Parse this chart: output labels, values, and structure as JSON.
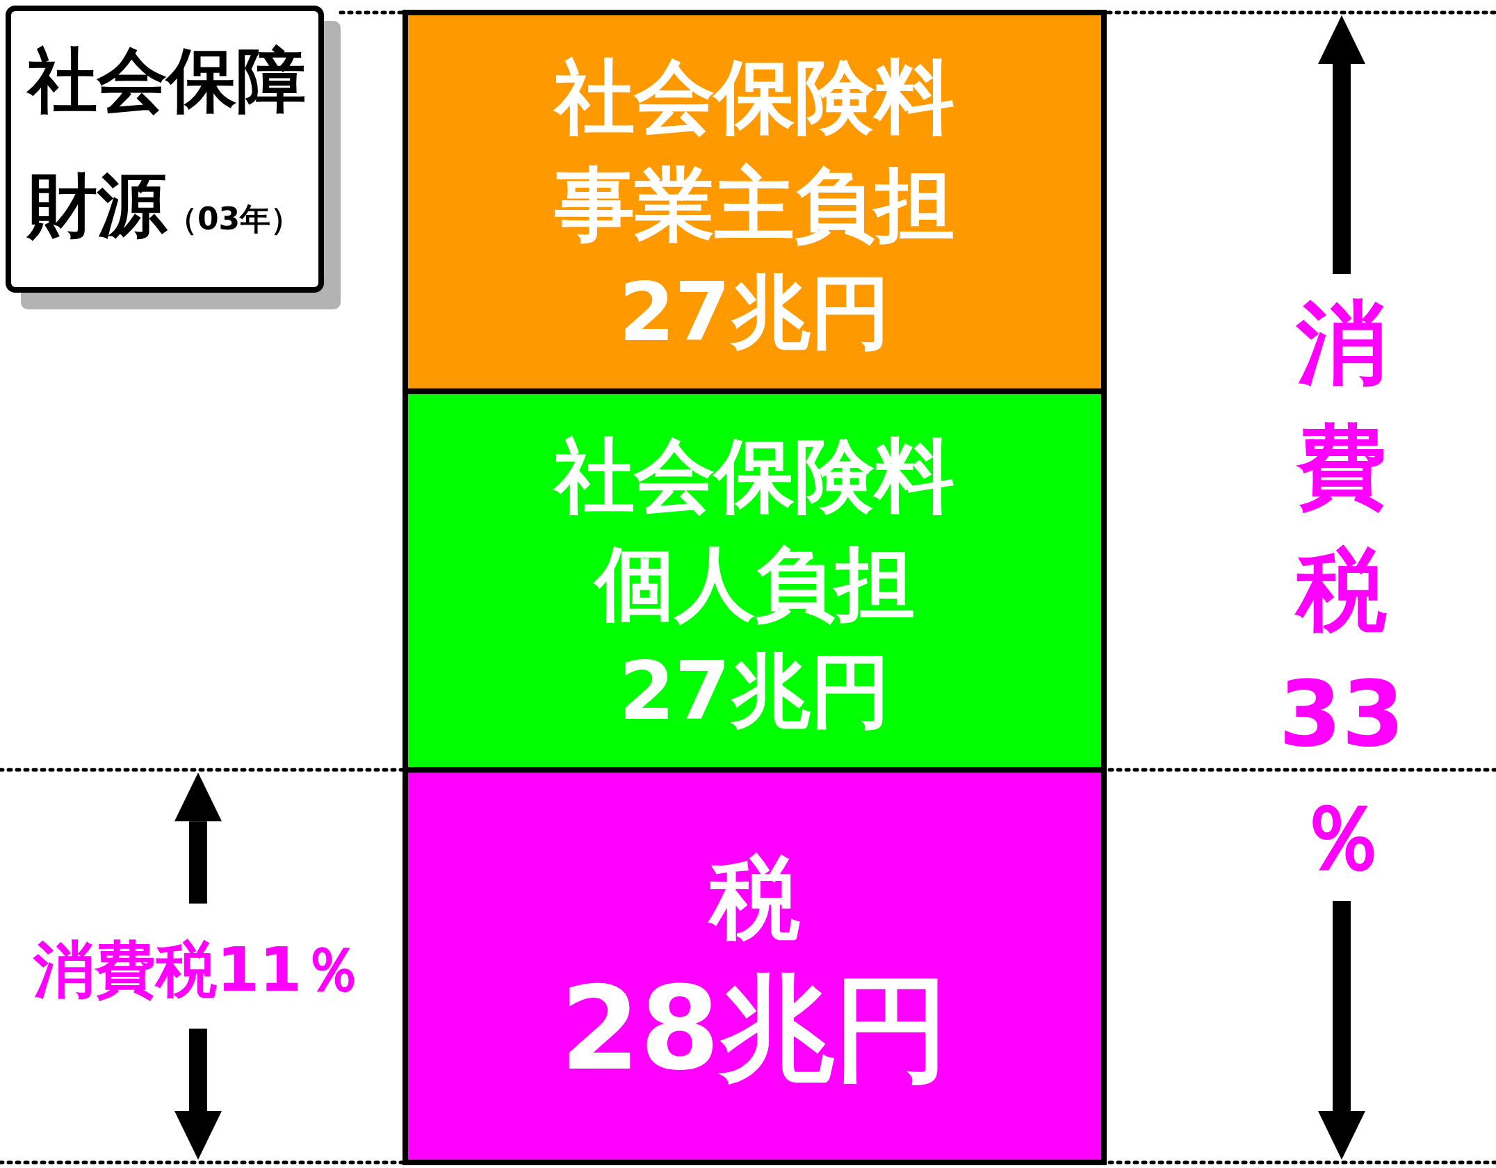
{
  "chart_data": {
    "type": "bar",
    "title": "社会保障財源",
    "subtitle": "（03年）",
    "categories": [
      null
    ],
    "stacked": true,
    "series": [
      {
        "name": "税",
        "color": "#ff00ff",
        "values": [
          28
        ],
        "value_labels": [
          "28兆円"
        ]
      },
      {
        "name": "社会保険料個人負担",
        "color": "#00ff00",
        "values": [
          27
        ],
        "value_labels": [
          "27兆円"
        ]
      },
      {
        "name": "社会保険料事業主負担",
        "color": "#ff9900",
        "values": [
          27
        ],
        "value_labels": [
          "27兆円"
        ]
      }
    ],
    "ref_lines": [
      {
        "axis": "y",
        "value": 0,
        "line_style": "dotted"
      },
      {
        "axis": "y",
        "value": 28,
        "line_style": "dotted"
      },
      {
        "axis": "y",
        "value": 82,
        "line_style": "dotted"
      }
    ],
    "annotations": [
      "消費税11％",
      "消費税33％"
    ]
  }
}
